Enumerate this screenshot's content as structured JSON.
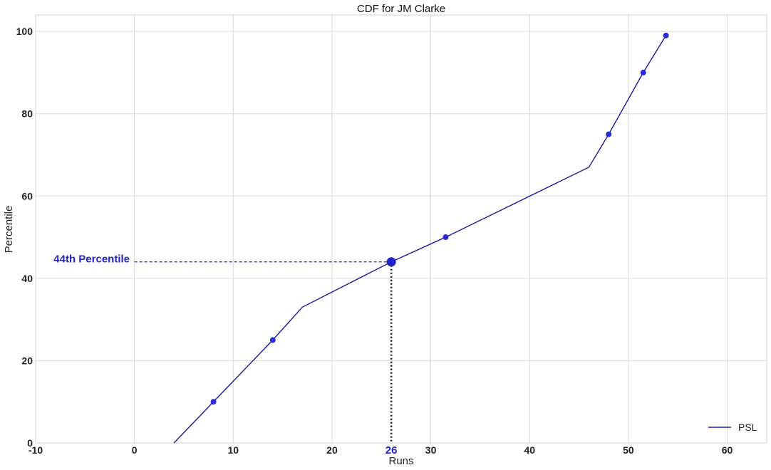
{
  "chart_data": {
    "type": "line",
    "title": "CDF for JM Clarke",
    "xlabel": "Runs",
    "ylabel": "Percentile",
    "xlim": [
      -10,
      64
    ],
    "ylim": [
      0,
      104
    ],
    "xticks": [
      -10,
      0,
      10,
      20,
      30,
      40,
      50,
      60
    ],
    "yticks": [
      0,
      20,
      40,
      60,
      80,
      100
    ],
    "grid": true,
    "legend_position": "bottom-right",
    "series": [
      {
        "name": "PSL",
        "color": "#1a1aa0",
        "x": [
          4,
          8,
          14,
          17,
          26,
          31.5,
          46,
          48,
          51.5,
          53.8
        ],
        "y": [
          0,
          10,
          25,
          33,
          44,
          50,
          67,
          75,
          90,
          99
        ]
      }
    ],
    "markers": {
      "color": "#2a2ad8",
      "points": [
        {
          "x": 8,
          "y": 10
        },
        {
          "x": 14,
          "y": 25
        },
        {
          "x": 26,
          "y": 44
        },
        {
          "x": 31.5,
          "y": 50
        },
        {
          "x": 48,
          "y": 75
        },
        {
          "x": 51.5,
          "y": 90
        },
        {
          "x": 53.8,
          "y": 99
        }
      ]
    },
    "highlight": {
      "x": 26,
      "y": 44,
      "x_label": "26",
      "label": "44th Percentile",
      "color": "#2222cc"
    }
  }
}
